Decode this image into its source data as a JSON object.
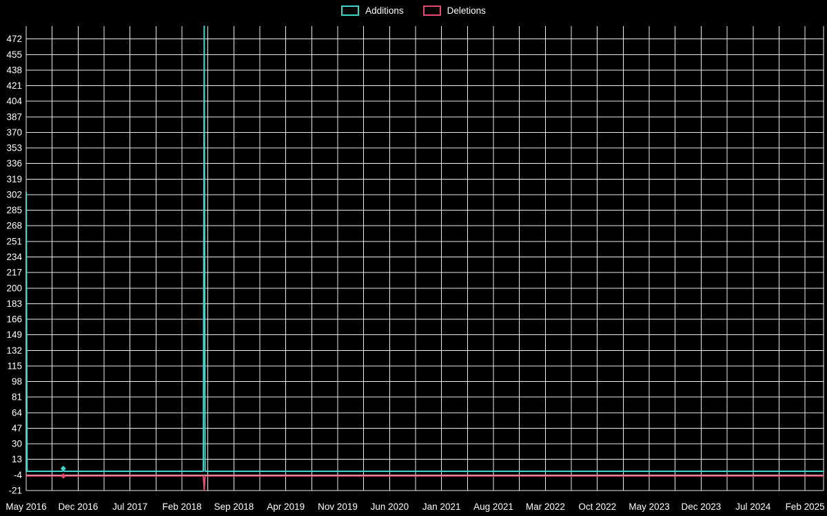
{
  "legend": {
    "items": [
      {
        "label": "Additions",
        "color": "#40d6ce"
      },
      {
        "label": "Deletions",
        "color": "#e84a6f"
      }
    ]
  },
  "colors": {
    "background": "#000000",
    "grid": "#ededed",
    "text": "#ffffff",
    "additions": "#40d6ce",
    "deletions": "#e84a6f"
  },
  "chart_data": {
    "type": "line",
    "title": "",
    "xlabel": "",
    "ylabel": "",
    "grid": true,
    "legend_position": "top-center",
    "ylim": [
      -21,
      486
    ],
    "xlim_months": [
      0,
      107.5
    ],
    "y_ticks": [
      -21,
      -4,
      13,
      30,
      47,
      64,
      81,
      98,
      115,
      132,
      149,
      166,
      183,
      200,
      217,
      234,
      251,
      268,
      285,
      302,
      319,
      336,
      353,
      370,
      387,
      404,
      421,
      438,
      455,
      472
    ],
    "x_ticks": [
      {
        "label": "May 2016",
        "month": 0
      },
      {
        "label": "Dec 2016",
        "month": 7
      },
      {
        "label": "Jul 2017",
        "month": 14
      },
      {
        "label": "Feb 2018",
        "month": 21
      },
      {
        "label": "Sep 2018",
        "month": 28
      },
      {
        "label": "Apr 2019",
        "month": 35
      },
      {
        "label": "Nov 2019",
        "month": 42
      },
      {
        "label": "Jun 2020",
        "month": 49
      },
      {
        "label": "Jan 2021",
        "month": 56
      },
      {
        "label": "Aug 2021",
        "month": 63
      },
      {
        "label": "Mar 2022",
        "month": 70
      },
      {
        "label": "Oct 2022",
        "month": 77
      },
      {
        "label": "May 2023",
        "month": 84
      },
      {
        "label": "Dec 2023",
        "month": 91
      },
      {
        "label": "Jul 2024",
        "month": 98
      },
      {
        "label": "Feb 2025",
        "month": 105
      }
    ],
    "vertical_grid_step_months": 3.5,
    "series": [
      {
        "name": "Additions",
        "color": "#40d6ce",
        "baseline": 0,
        "points": [
          {
            "x": "May 2016",
            "month": 0,
            "value": 305
          },
          {
            "x": "Oct 2016",
            "month": 5,
            "value": 3,
            "marker": true
          },
          {
            "x": "May 2018",
            "month": 24,
            "value": 486
          }
        ]
      },
      {
        "name": "Deletions",
        "color": "#e84a6f",
        "baseline": -5,
        "points": [
          {
            "x": "Oct 2016",
            "month": 5,
            "value": -5,
            "marker": true
          },
          {
            "x": "May 2018",
            "month": 24,
            "value": -21
          }
        ]
      }
    ]
  }
}
